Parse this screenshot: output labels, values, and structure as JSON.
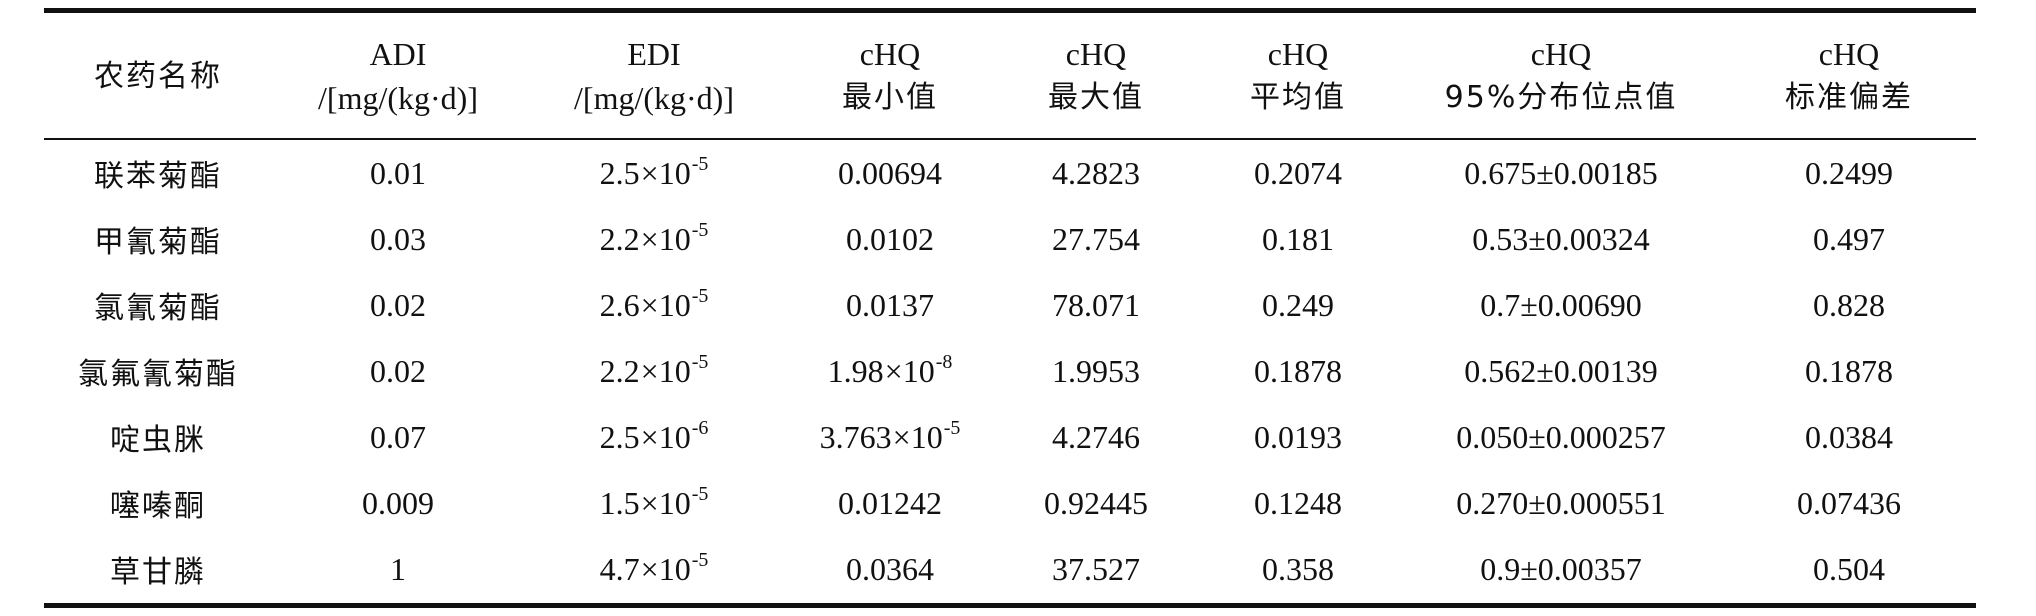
{
  "table": {
    "headers": [
      {
        "line1": "农药名称",
        "line2": ""
      },
      {
        "line1": "ADI",
        "line2": "/[mg/(kg·d)]"
      },
      {
        "line1": "EDI",
        "line2": "/[mg/(kg·d)]"
      },
      {
        "line1": "cHQ",
        "line2": "最小值"
      },
      {
        "line1": "cHQ",
        "line2": "最大值"
      },
      {
        "line1": "cHQ",
        "line2": "平均值"
      },
      {
        "line1": "cHQ",
        "line2": "95%分布位点值"
      },
      {
        "line1": "cHQ",
        "line2": "标准偏差"
      }
    ],
    "rows": [
      {
        "name": "联苯菊酯",
        "adi": "0.01",
        "edi_base": "2.5",
        "edi_exp": "-5",
        "min": "0.00694",
        "min_exp": "",
        "max": "4.2823",
        "mean": "0.2074",
        "p95": "0.675±0.00185",
        "sd": "0.2499"
      },
      {
        "name": "甲氰菊酯",
        "adi": "0.03",
        "edi_base": "2.2",
        "edi_exp": "-5",
        "min": "0.0102",
        "min_exp": "",
        "max": "27.754",
        "mean": "0.181",
        "p95": "0.53±0.00324",
        "sd": "0.497"
      },
      {
        "name": "氯氰菊酯",
        "adi": "0.02",
        "edi_base": "2.6",
        "edi_exp": "-5",
        "min": "0.0137",
        "min_exp": "",
        "max": "78.071",
        "mean": "0.249",
        "p95": "0.7±0.00690",
        "sd": "0.828"
      },
      {
        "name": "氯氟氰菊酯",
        "adi": "0.02",
        "edi_base": "2.2",
        "edi_exp": "-5",
        "min": "1.98",
        "min_exp": "-8",
        "max": "1.9953",
        "mean": "0.1878",
        "p95": "0.562±0.00139",
        "sd": "0.1878"
      },
      {
        "name": "啶虫脒",
        "adi": "0.07",
        "edi_base": "2.5",
        "edi_exp": "-6",
        "min": "3.763",
        "min_exp": "-5",
        "max": "4.2746",
        "mean": "0.0193",
        "p95": "0.050±0.000257",
        "sd": "0.0384"
      },
      {
        "name": "噻嗪酮",
        "adi": "0.009",
        "edi_base": "1.5",
        "edi_exp": "-5",
        "min": "0.01242",
        "min_exp": "",
        "max": "0.92445",
        "mean": "0.1248",
        "p95": "0.270±0.000551",
        "sd": "0.07436"
      },
      {
        "name": "草甘膦",
        "adi": "1",
        "edi_base": "4.7",
        "edi_exp": "-5",
        "min": "0.0364",
        "min_exp": "",
        "max": "37.527",
        "mean": "0.358",
        "p95": "0.9±0.00357",
        "sd": "0.504"
      }
    ],
    "sci_multiplier": "×10"
  }
}
